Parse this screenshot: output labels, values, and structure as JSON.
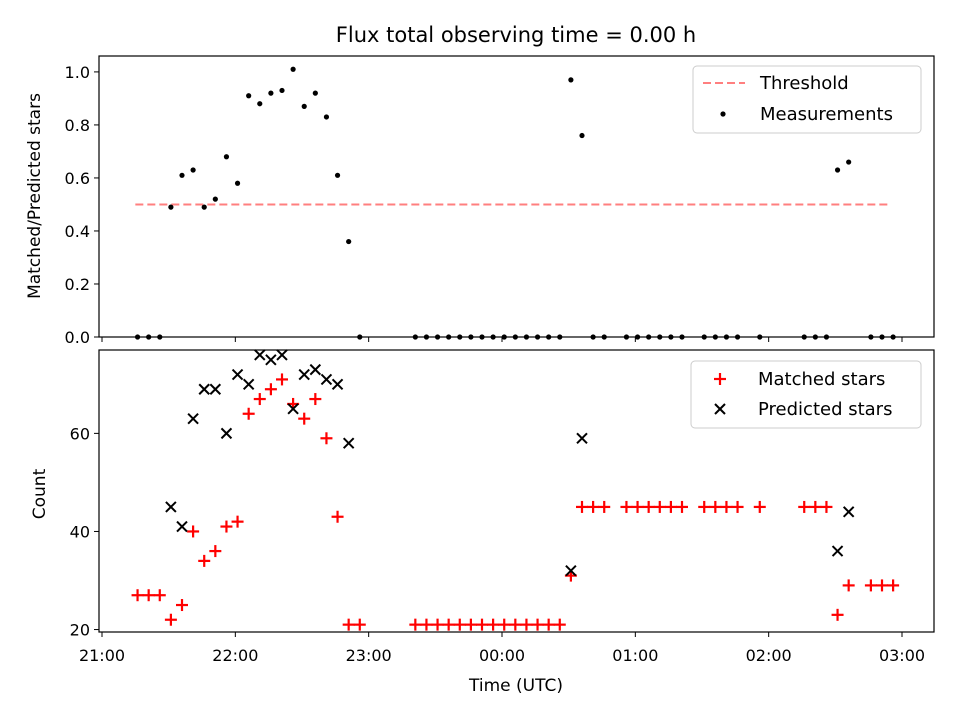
{
  "chart_data": [
    {
      "type": "scatter",
      "title": "Flux total observing time = 0.00 h",
      "xlabel": "",
      "ylabel": "Matched/Predicted stars",
      "ylim": [
        0.0,
        1.06
      ],
      "xlim": [
        "21:00",
        "03:00"
      ],
      "yticks": [
        "0.0",
        "0.2",
        "0.4",
        "0.6",
        "0.8",
        "1.0"
      ],
      "legend_position": "top-right",
      "series": [
        {
          "name": "Threshold",
          "kind": "dashed-line",
          "color": "#ff7f7f",
          "x": [
            "21:15",
            "02:55"
          ],
          "y": [
            0.5,
            0.5
          ]
        },
        {
          "name": "Measurements",
          "kind": "points",
          "color": "#000000",
          "x": [
            "21:16",
            "21:21",
            "21:26",
            "21:31",
            "21:36",
            "21:41",
            "21:46",
            "21:51",
            "21:56",
            "22:01",
            "22:06",
            "22:11",
            "22:16",
            "22:21",
            "22:26",
            "22:31",
            "22:36",
            "22:41",
            "22:46",
            "22:51",
            "22:56",
            "23:21",
            "23:26",
            "23:31",
            "23:36",
            "23:41",
            "23:46",
            "23:51",
            "23:56",
            "00:01",
            "00:06",
            "00:11",
            "00:16",
            "00:21",
            "00:26",
            "00:31",
            "00:36",
            "00:41",
            "00:46",
            "00:56",
            "01:01",
            "01:06",
            "01:11",
            "01:16",
            "01:21",
            "01:31",
            "01:36",
            "01:41",
            "01:46",
            "01:56",
            "02:16",
            "02:21",
            "02:26",
            "02:31",
            "02:36",
            "02:46",
            "02:51",
            "02:56"
          ],
          "y": [
            0.0,
            0.0,
            0.0,
            0.49,
            0.61,
            0.63,
            0.49,
            0.52,
            0.68,
            0.58,
            0.91,
            0.88,
            0.92,
            0.93,
            1.01,
            0.87,
            0.92,
            0.83,
            0.61,
            0.36,
            0.0,
            0.0,
            0.0,
            0.0,
            0.0,
            0.0,
            0.0,
            0.0,
            0.0,
            0.0,
            0.0,
            0.0,
            0.0,
            0.0,
            0.0,
            0.97,
            0.76,
            0.0,
            0.0,
            0.0,
            0.0,
            0.0,
            0.0,
            0.0,
            0.0,
            0.0,
            0.0,
            0.0,
            0.0,
            0.0,
            0.0,
            0.0,
            0.0,
            0.63,
            0.66,
            0.0,
            0.0,
            0.0
          ]
        }
      ]
    },
    {
      "type": "scatter",
      "title": "",
      "xlabel": "Time (UTC)",
      "ylabel": "Count",
      "ylim": [
        19.5,
        77
      ],
      "xlim": [
        "21:00",
        "03:00"
      ],
      "yticks": [
        "20",
        "40",
        "60"
      ],
      "xticks": [
        "21:00",
        "22:00",
        "23:00",
        "00:00",
        "01:00",
        "02:00",
        "03:00"
      ],
      "legend_position": "top-right",
      "series": [
        {
          "name": "Matched stars",
          "marker": "plus",
          "color": "#ff0000",
          "x": [
            "21:16",
            "21:21",
            "21:26",
            "21:31",
            "21:36",
            "21:41",
            "21:46",
            "21:51",
            "21:56",
            "22:01",
            "22:06",
            "22:11",
            "22:16",
            "22:21",
            "22:26",
            "22:31",
            "22:36",
            "22:41",
            "22:46",
            "22:51",
            "22:56",
            "23:21",
            "23:26",
            "23:31",
            "23:36",
            "23:41",
            "23:46",
            "23:51",
            "23:56",
            "00:01",
            "00:06",
            "00:11",
            "00:16",
            "00:21",
            "00:26",
            "00:31",
            "00:36",
            "00:41",
            "00:46",
            "00:56",
            "01:01",
            "01:06",
            "01:11",
            "01:16",
            "01:21",
            "01:31",
            "01:36",
            "01:41",
            "01:46",
            "01:56",
            "02:16",
            "02:21",
            "02:26",
            "02:31",
            "02:36",
            "02:46",
            "02:51",
            "02:56"
          ],
          "y": [
            27,
            27,
            27,
            22,
            25,
            40,
            34,
            36,
            41,
            42,
            64,
            67,
            69,
            71,
            66,
            63,
            67,
            59,
            43,
            21,
            21,
            21,
            21,
            21,
            21,
            21,
            21,
            21,
            21,
            21,
            21,
            21,
            21,
            21,
            21,
            31,
            45,
            45,
            45,
            45,
            45,
            45,
            45,
            45,
            45,
            45,
            45,
            45,
            45,
            45,
            45,
            45,
            45,
            23,
            29,
            29,
            29,
            29
          ]
        },
        {
          "name": "Predicted stars",
          "marker": "x",
          "color": "#000000",
          "x": [
            "21:31",
            "21:36",
            "21:41",
            "21:46",
            "21:51",
            "21:56",
            "22:01",
            "22:06",
            "22:11",
            "22:16",
            "22:21",
            "22:26",
            "22:31",
            "22:36",
            "22:41",
            "22:46",
            "22:51",
            "00:31",
            "00:36",
            "02:31",
            "02:36"
          ],
          "y": [
            45,
            41,
            63,
            69,
            69,
            60,
            72,
            70,
            76,
            75,
            76,
            65,
            72,
            73,
            71,
            70,
            58,
            32,
            59,
            36,
            44
          ]
        }
      ]
    }
  ]
}
